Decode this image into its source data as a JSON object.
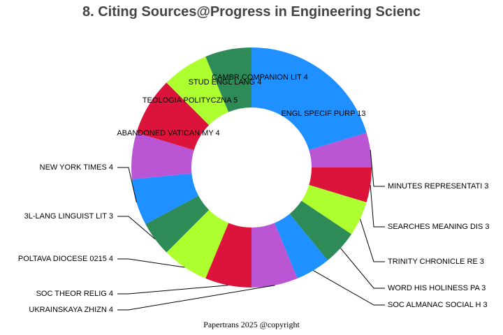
{
  "colors": {
    "blue": "#1e90ff",
    "purple": "#ba55d3",
    "red": "#dc143c",
    "lime": "#adff2f",
    "green": "#2e8b57"
  },
  "footer": "Papertrans 2025 @copyright",
  "chart_data": {
    "type": "pie",
    "style": "donut",
    "title": "8. Citing Sources@Progress in Engineering Scienc",
    "slices": [
      {
        "label": "ENGL SPECIF PURP 13",
        "value": 13,
        "color": "#1e90ff"
      },
      {
        "label": "MINUTES REPRESENTATI 3",
        "value": 3,
        "color": "#ba55d3"
      },
      {
        "label": "SEARCHES MEANING DIS 3",
        "value": 3,
        "color": "#dc143c"
      },
      {
        "label": "TRINITY CHRONICLE RE 3",
        "value": 3,
        "color": "#adff2f"
      },
      {
        "label": "WORD HIS HOLINESS PA 3",
        "value": 3,
        "color": "#2e8b57"
      },
      {
        "label": "SOC ALMANAC SOCIAL H 3",
        "value": 3,
        "color": "#1e90ff"
      },
      {
        "label": "UKRAINSKAYA ZHIZN 4",
        "value": 4,
        "color": "#ba55d3"
      },
      {
        "label": "SOC THEOR RELIG 4",
        "value": 4,
        "color": "#dc143c"
      },
      {
        "label": "POLTAVA DIOCESE 0215 4",
        "value": 4,
        "color": "#adff2f"
      },
      {
        "label": "3L-LANG LINGUIST LIT 3",
        "value": 3,
        "color": "#2e8b57"
      },
      {
        "label": "NEW YORK TIMES 4",
        "value": 4,
        "color": "#1e90ff"
      },
      {
        "label": "ABANDONED VATICAN MY 4",
        "value": 4,
        "color": "#ba55d3"
      },
      {
        "label": "TEOLOGIA POLITYCZNA 5",
        "value": 5,
        "color": "#dc143c"
      },
      {
        "label": "STUD ENGL LANG 4",
        "value": 4,
        "color": "#adff2f"
      },
      {
        "label": "CAMBR COMPANION LIT 4",
        "value": 4,
        "color": "#2e8b57"
      }
    ]
  }
}
